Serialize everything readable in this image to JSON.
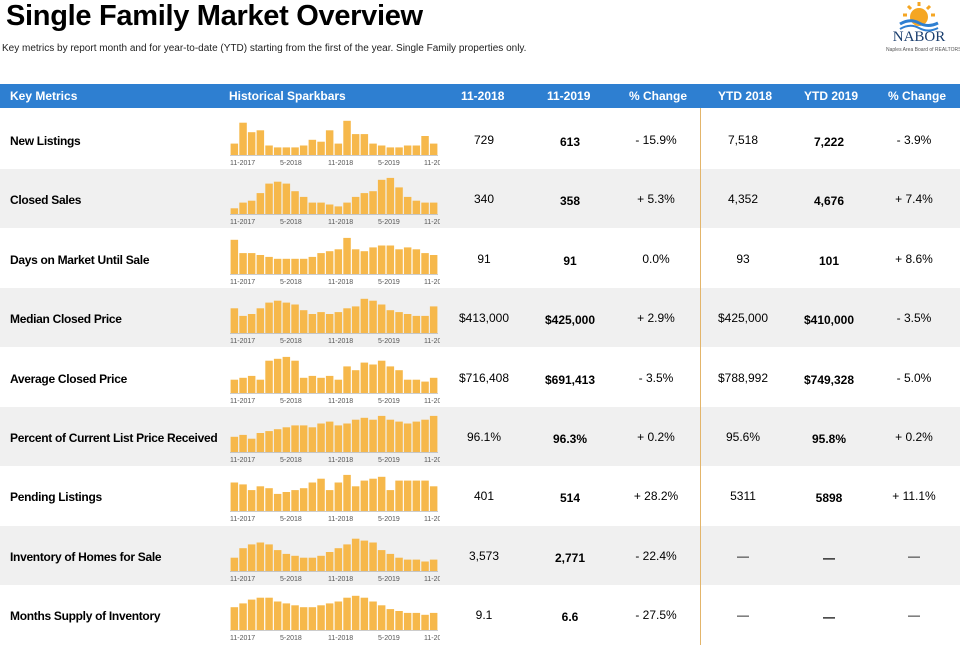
{
  "header": {
    "title": "Single Family Market Overview",
    "subtitle": "Key metrics by report month and for year-to-date (YTD) starting from the first of the year. Single Family properties only."
  },
  "logo": {
    "name": "NABOR",
    "tagline": "Naples Area Board of REALTORS®"
  },
  "columns": {
    "metric": "Key Metrics",
    "spark": "Historical Sparkbars",
    "m2018": "11-2018",
    "m2019": "11-2019",
    "pct_month": "% Change",
    "ytd2018": "YTD 2018",
    "ytd2019": "YTD 2019",
    "pct_ytd": "% Change"
  },
  "spark_axis": [
    "11-2017",
    "5-2018",
    "11-2018",
    "5-2019",
    "11-2019"
  ],
  "colors": {
    "header_bg": "#2e7fd1",
    "bar": "#f6b84b",
    "row_alt": "#f0f0f0",
    "divider": "#e3b56b"
  },
  "rows": [
    {
      "metric": "New Listings",
      "m2018": "729",
      "m2019": "613",
      "pct_month": "- 15.9%",
      "ytd2018": "7,518",
      "ytd2019": "7,222",
      "pct_ytd": "- 3.9%",
      "bars": [
        0.3,
        0.85,
        0.6,
        0.65,
        0.25,
        0.2,
        0.2,
        0.2,
        0.25,
        0.4,
        0.35,
        0.65,
        0.3,
        0.9,
        0.55,
        0.55,
        0.3,
        0.25,
        0.2,
        0.2,
        0.25,
        0.25,
        0.5,
        0.3
      ]
    },
    {
      "metric": "Closed Sales",
      "m2018": "340",
      "m2019": "358",
      "pct_month": "+ 5.3%",
      "ytd2018": "4,352",
      "ytd2019": "4,676",
      "pct_ytd": "+ 7.4%",
      "bars": [
        0.15,
        0.3,
        0.35,
        0.55,
        0.8,
        0.85,
        0.8,
        0.6,
        0.45,
        0.3,
        0.3,
        0.25,
        0.2,
        0.3,
        0.45,
        0.55,
        0.6,
        0.9,
        0.95,
        0.7,
        0.45,
        0.35,
        0.3,
        0.3
      ]
    },
    {
      "metric": "Days on Market Until Sale",
      "m2018": "91",
      "m2019": "91",
      "pct_month": "0.0%",
      "ytd2018": "93",
      "ytd2019": "101",
      "pct_ytd": "+ 8.6%",
      "bars": [
        0.9,
        0.55,
        0.55,
        0.5,
        0.45,
        0.4,
        0.4,
        0.4,
        0.4,
        0.45,
        0.55,
        0.6,
        0.65,
        0.95,
        0.65,
        0.6,
        0.7,
        0.75,
        0.75,
        0.65,
        0.7,
        0.65,
        0.55,
        0.5
      ]
    },
    {
      "metric": "Median Closed Price",
      "m2018": "$413,000",
      "m2019": "$425,000",
      "pct_month": "+ 2.9%",
      "ytd2018": "$425,000",
      "ytd2019": "$410,000",
      "pct_ytd": "- 3.5%",
      "bars": [
        0.65,
        0.45,
        0.5,
        0.65,
        0.8,
        0.85,
        0.8,
        0.75,
        0.6,
        0.5,
        0.55,
        0.5,
        0.55,
        0.65,
        0.7,
        0.9,
        0.85,
        0.75,
        0.6,
        0.55,
        0.5,
        0.45,
        0.45,
        0.7
      ]
    },
    {
      "metric": "Average Closed Price",
      "m2018": "$716,408",
      "m2019": "$691,413",
      "pct_month": "- 3.5%",
      "ytd2018": "$788,992",
      "ytd2019": "$749,328",
      "pct_ytd": "- 5.0%",
      "bars": [
        0.35,
        0.4,
        0.45,
        0.35,
        0.85,
        0.9,
        0.95,
        0.85,
        0.4,
        0.45,
        0.4,
        0.45,
        0.35,
        0.7,
        0.6,
        0.8,
        0.75,
        0.85,
        0.7,
        0.6,
        0.35,
        0.35,
        0.3,
        0.4
      ]
    },
    {
      "metric": "Percent of Current List Price Received",
      "m2018": "96.1%",
      "m2019": "96.3%",
      "pct_month": "+ 0.2%",
      "ytd2018": "95.6%",
      "ytd2019": "95.8%",
      "pct_ytd": "+ 0.2%",
      "bars": [
        0.4,
        0.45,
        0.35,
        0.5,
        0.55,
        0.6,
        0.65,
        0.7,
        0.7,
        0.65,
        0.75,
        0.8,
        0.7,
        0.75,
        0.85,
        0.9,
        0.85,
        0.95,
        0.85,
        0.8,
        0.75,
        0.8,
        0.85,
        0.95
      ]
    },
    {
      "metric": "Pending Listings",
      "m2018": "401",
      "m2019": "514",
      "pct_month": "+ 28.2%",
      "ytd2018": "5311",
      "ytd2019": "5898",
      "pct_ytd": "+ 11.1%",
      "bars": [
        0.75,
        0.7,
        0.55,
        0.65,
        0.6,
        0.45,
        0.5,
        0.55,
        0.6,
        0.75,
        0.85,
        0.55,
        0.75,
        0.95,
        0.65,
        0.8,
        0.85,
        0.9,
        0.55,
        0.8,
        0.8,
        0.8,
        0.8,
        0.65
      ]
    },
    {
      "metric": "Inventory of Homes for Sale",
      "m2018": "3,573",
      "m2019": "2,771",
      "pct_month": "- 22.4%",
      "ytd2018": "—",
      "ytd2019": "—",
      "pct_ytd": "—",
      "bars": [
        0.35,
        0.6,
        0.7,
        0.75,
        0.7,
        0.55,
        0.45,
        0.4,
        0.35,
        0.35,
        0.4,
        0.5,
        0.6,
        0.7,
        0.85,
        0.8,
        0.75,
        0.55,
        0.45,
        0.35,
        0.3,
        0.3,
        0.25,
        0.3
      ]
    },
    {
      "metric": "Months Supply of Inventory",
      "m2018": "9.1",
      "m2019": "6.6",
      "pct_month": "- 27.5%",
      "ytd2018": "—",
      "ytd2019": "—",
      "pct_ytd": "—",
      "bars": [
        0.6,
        0.7,
        0.8,
        0.85,
        0.85,
        0.75,
        0.7,
        0.65,
        0.6,
        0.6,
        0.65,
        0.7,
        0.75,
        0.85,
        0.9,
        0.85,
        0.75,
        0.65,
        0.55,
        0.5,
        0.45,
        0.45,
        0.4,
        0.45
      ]
    }
  ]
}
